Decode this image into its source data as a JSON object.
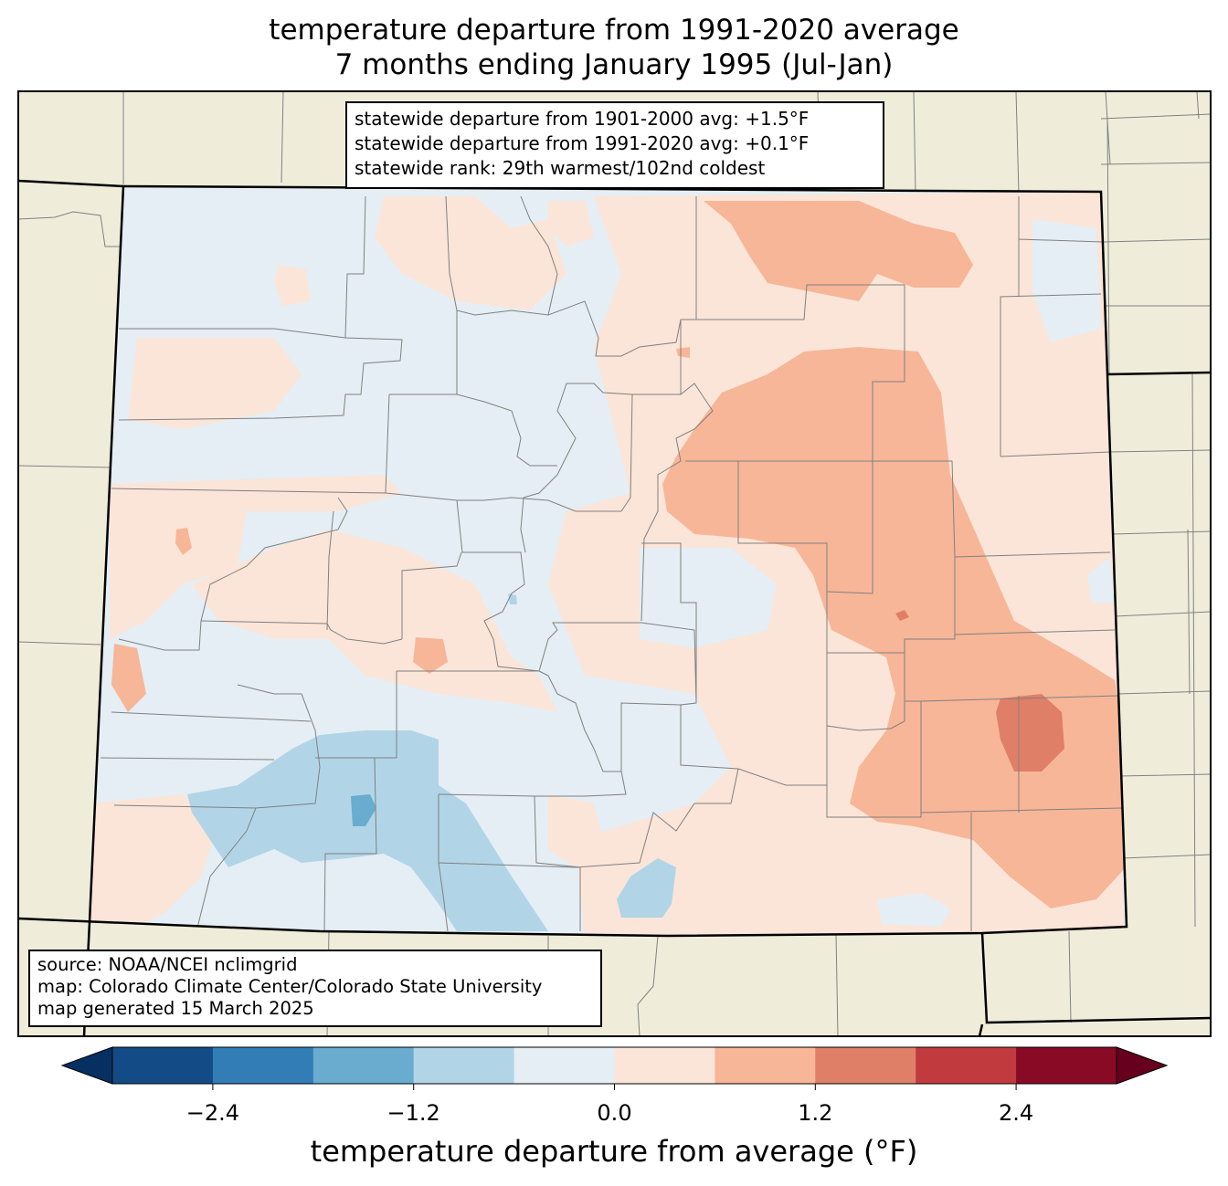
{
  "title": {
    "line1": "temperature departure from 1991-2020 average",
    "line2": "7 months ending January 1995 (Jul-Jan)"
  },
  "stats": {
    "line1": "statewide departure from 1901-2000 avg: +1.5°F",
    "line2": "statewide departure from 1991-2020 avg: +0.1°F",
    "line3": "statewide rank: 29th warmest/102nd coldest"
  },
  "credits": {
    "line1": "source: NOAA/NCEI nclimgrid",
    "line2": "map: Colorado Climate Center/Colorado State University",
    "line3": "map generated 15 March 2025"
  },
  "colorbar": {
    "label": "temperature departure from average (°F)",
    "ticks": [
      "−2.4",
      "−1.2",
      "0.0",
      "1.2",
      "2.4"
    ],
    "boundaries": [
      -3.0,
      -2.4,
      -1.8,
      -1.2,
      -0.6,
      0.0,
      0.6,
      1.2,
      1.8,
      2.4,
      3.0
    ],
    "colors": [
      "#053061",
      "#134b87",
      "#327db6",
      "#6aacd0",
      "#b1d5e7",
      "#e4eef4",
      "#fbe5d8",
      "#f7b698",
      "#e07f67",
      "#c13b3e",
      "#890a25",
      "#67001f"
    ]
  },
  "map_colors": {
    "land_outside": "#efedda",
    "state_border": "#000000",
    "county_lines": "#808080"
  }
}
